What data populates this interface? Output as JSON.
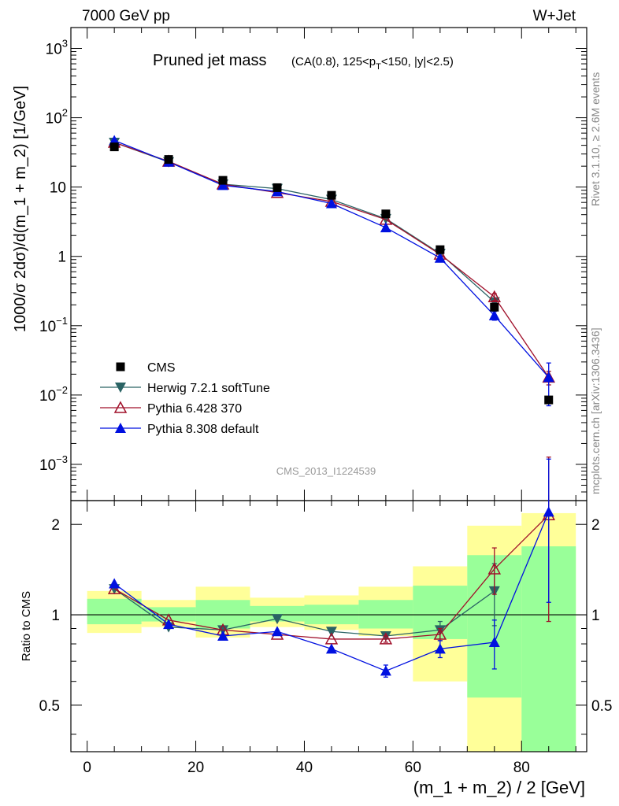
{
  "header": {
    "left": "7000 GeV pp",
    "right": "W+Jet"
  },
  "side_text": {
    "rivet": "Rivet 3.1.10, ≥ 2.6M events",
    "mcplots": "mcplots.cern.ch [arXiv:1306.3436]"
  },
  "chart_data": [
    {
      "type": "scatter",
      "title": "Pruned jet mass",
      "subtitle": "(CA(0.8), 125<p_T<150, |y|<2.5)",
      "ylabel": "1000/σ 2dσ)/d(m_1 + m_2) [1/GeV]",
      "yscale": "log",
      "ylim": [
        0.0003,
        2000
      ],
      "xlim": [
        -3,
        92
      ],
      "yticks": [
        {
          "value": 0.001,
          "base": "10",
          "exp": "−3"
        },
        {
          "value": 0.01,
          "base": "10",
          "exp": "−2"
        },
        {
          "value": 0.1,
          "base": "10",
          "exp": "−1"
        },
        {
          "value": 1,
          "base": "1",
          "exp": ""
        },
        {
          "value": 10,
          "base": "10",
          "exp": ""
        },
        {
          "value": 100,
          "base": "10",
          "exp": "2"
        },
        {
          "value": 1000,
          "base": "10",
          "exp": "3"
        }
      ],
      "watermark": "CMS_2013_I1224539",
      "legend_position": "bottom-left",
      "series": [
        {
          "name": "CMS",
          "color": "#000000",
          "marker": "square",
          "x": [
            5,
            15,
            25,
            35,
            45,
            55,
            65,
            75,
            85
          ],
          "y": [
            38,
            25,
            12.5,
            9.8,
            7.6,
            4.1,
            1.25,
            0.185,
            0.0085
          ],
          "yerr": [
            0,
            0,
            0,
            0,
            0,
            0,
            0,
            0.02,
            0.001
          ]
        },
        {
          "name": "Herwig 7.2.1 softTune",
          "color": "#2a6364",
          "marker": "triangle-down",
          "x": [
            5,
            15,
            25,
            35,
            45,
            55,
            65,
            75,
            85
          ],
          "y": [
            44,
            23,
            11,
            9.5,
            6.6,
            3.5,
            1.1,
            0.22,
            null
          ],
          "yerr": [
            0,
            0,
            0,
            0,
            0,
            0,
            0,
            0.02,
            0
          ]
        },
        {
          "name": "Pythia 6.428 370",
          "color": "#a0102a",
          "marker": "triangle-up-open",
          "x": [
            5,
            15,
            25,
            35,
            45,
            55,
            65,
            75,
            85
          ],
          "y": [
            44,
            23.5,
            11,
            8.3,
            6.2,
            3.4,
            1.07,
            0.26,
            0.018
          ],
          "yerr": [
            0,
            0,
            0,
            0,
            0,
            0,
            0,
            0.03,
            0.004
          ]
        },
        {
          "name": "Pythia 8.308 default",
          "color": "#0010e0",
          "marker": "triangle-up",
          "x": [
            5,
            15,
            25,
            35,
            45,
            55,
            65,
            75,
            85
          ],
          "y": [
            47,
            23,
            10.6,
            8.6,
            5.8,
            2.6,
            0.95,
            0.14,
            0.018
          ],
          "yerr": [
            0,
            0,
            0,
            0,
            0,
            0.1,
            0.05,
            0.02,
            0.011
          ]
        }
      ]
    },
    {
      "type": "scatter",
      "ylabel": "Ratio to CMS",
      "xlabel": "(m_1 + m_2) / 2 [GeV]",
      "yscale": "log",
      "ylim": [
        0.35,
        2.4
      ],
      "xlim": [
        -3,
        92
      ],
      "xticks": [
        0,
        20,
        40,
        60,
        80
      ],
      "yticks": [
        0.5,
        1,
        2
      ],
      "bands": {
        "bins": [
          [
            0,
            10
          ],
          [
            10,
            20
          ],
          [
            20,
            30
          ],
          [
            30,
            40
          ],
          [
            40,
            50
          ],
          [
            50,
            60
          ],
          [
            60,
            70
          ],
          [
            70,
            80
          ],
          [
            80,
            90
          ]
        ],
        "yellow": [
          [
            0.87,
            1.2
          ],
          [
            0.91,
            1.12
          ],
          [
            0.84,
            1.24
          ],
          [
            0.91,
            1.14
          ],
          [
            0.89,
            1.16
          ],
          [
            0.85,
            1.24
          ],
          [
            0.6,
            1.45
          ],
          [
            0.3,
            1.98
          ],
          [
            0.3,
            2.18
          ]
        ],
        "green": [
          [
            0.93,
            1.13
          ],
          [
            0.95,
            1.06
          ],
          [
            0.9,
            1.12
          ],
          [
            0.95,
            1.07
          ],
          [
            0.93,
            1.08
          ],
          [
            0.9,
            1.12
          ],
          [
            0.83,
            1.25
          ],
          [
            0.53,
            1.58
          ],
          [
            0.3,
            1.69
          ]
        ]
      },
      "series": [
        {
          "name": "Herwig 7.2.1 softTune",
          "color": "#2a6364",
          "marker": "triangle-down",
          "x": [
            5,
            15,
            25,
            35,
            45,
            55,
            65,
            75
          ],
          "y": [
            1.22,
            0.91,
            0.89,
            0.97,
            0.88,
            0.85,
            0.89,
            1.2
          ],
          "yerr": [
            0,
            0,
            0,
            0,
            0,
            0.02,
            0.06,
            0.28
          ]
        },
        {
          "name": "Pythia 6.428 370",
          "color": "#a0102a",
          "marker": "triangle-up-open",
          "x": [
            5,
            15,
            25,
            35,
            45,
            55,
            65,
            75,
            85
          ],
          "y": [
            1.22,
            0.96,
            0.89,
            0.86,
            0.83,
            0.83,
            0.86,
            1.42,
            2.15
          ],
          "yerr": [
            0,
            0,
            0,
            0,
            0,
            0.02,
            0.04,
            0.25,
            1.2
          ]
        },
        {
          "name": "Pythia 8.308 default",
          "color": "#0010e0",
          "marker": "triangle-up",
          "x": [
            5,
            15,
            25,
            35,
            45,
            55,
            65,
            75,
            85
          ],
          "y": [
            1.27,
            0.93,
            0.85,
            0.88,
            0.77,
            0.65,
            0.77,
            0.81,
            2.2
          ],
          "yerr": [
            0,
            0,
            0,
            0,
            0,
            0.03,
            0.05,
            0.15,
            1.1
          ]
        }
      ]
    }
  ]
}
